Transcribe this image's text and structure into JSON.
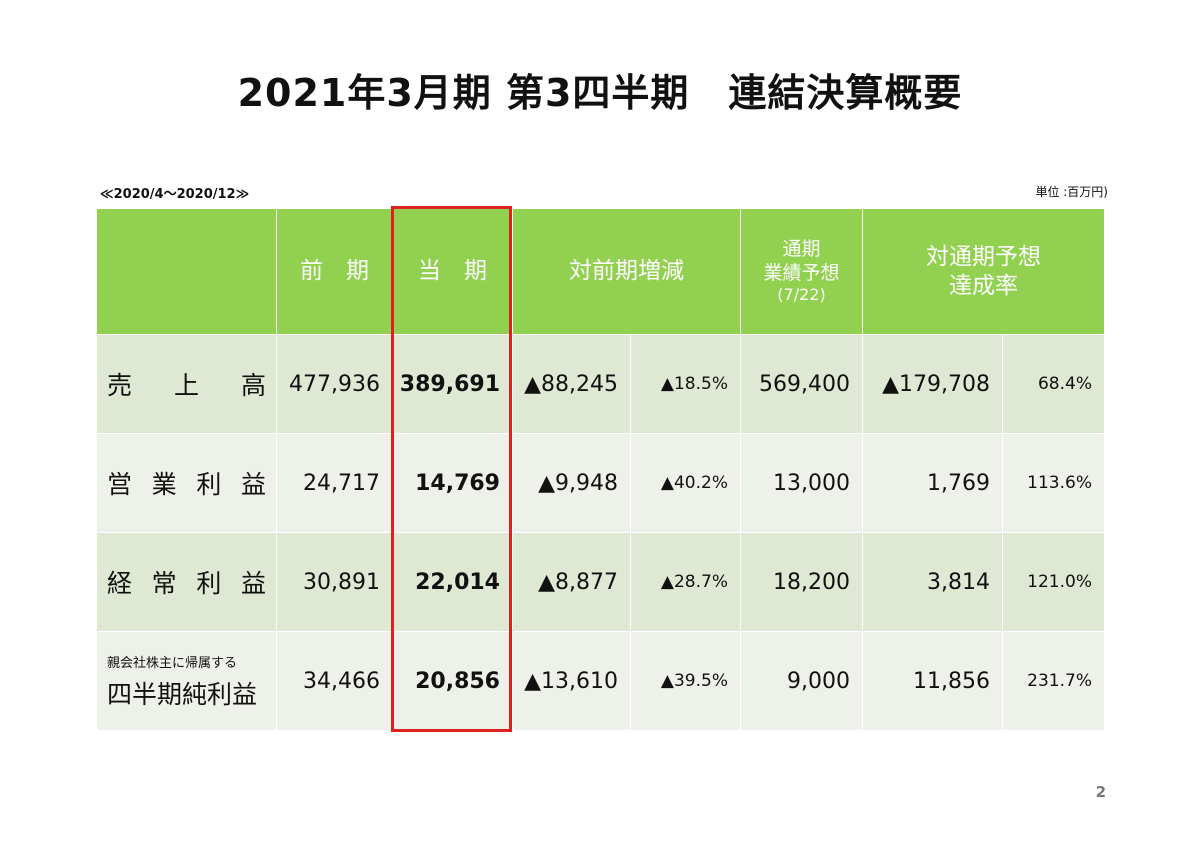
{
  "title": "2021年3月期 第3四半期　連結決算概要",
  "period": "≪2020/4〜2020/12≫",
  "unit": "単位 :百万円)",
  "header": {
    "prev": "前　期",
    "current": "当　期",
    "yoy": "対前期増減",
    "forecast_line1": "通期",
    "forecast_line2": "業績予想",
    "forecast_line3": "(7/22)",
    "achieve_line1": "対通期予想",
    "achieve_line2": "達成率"
  },
  "rows": [
    {
      "label_chars": [
        "売",
        "上",
        "高"
      ],
      "prev": "477,936",
      "current": "389,691",
      "diff": "▲88,245",
      "diff_pct": "▲18.5%",
      "forecast": "569,400",
      "vs_forecast": "▲179,708",
      "rate": "68.4%"
    },
    {
      "label_chars": [
        "営",
        "業",
        "利",
        "益"
      ],
      "prev": "24,717",
      "current": "14,769",
      "diff": "▲9,948",
      "diff_pct": "▲40.2%",
      "forecast": "13,000",
      "vs_forecast": "1,769",
      "rate": "113.6%"
    },
    {
      "label_chars": [
        "経",
        "常",
        "利",
        "益"
      ],
      "prev": "30,891",
      "current": "22,014",
      "diff": "▲8,877",
      "diff_pct": "▲28.7%",
      "forecast": "18,200",
      "vs_forecast": "3,814",
      "rate": "121.0%"
    },
    {
      "label_sub": "親会社株主に帰属する",
      "label_main": "四半期純利益",
      "prev": "34,466",
      "current": "20,856",
      "diff": "▲13,610",
      "diff_pct": "▲39.5%",
      "forecast": "9,000",
      "vs_forecast": "11,856",
      "rate": "231.7%"
    }
  ],
  "page_number": "2",
  "colors": {
    "header_bg": "#92d050",
    "row_dark": "#dfe8d3",
    "row_light": "#eef1ea",
    "highlight": "#e02020"
  }
}
